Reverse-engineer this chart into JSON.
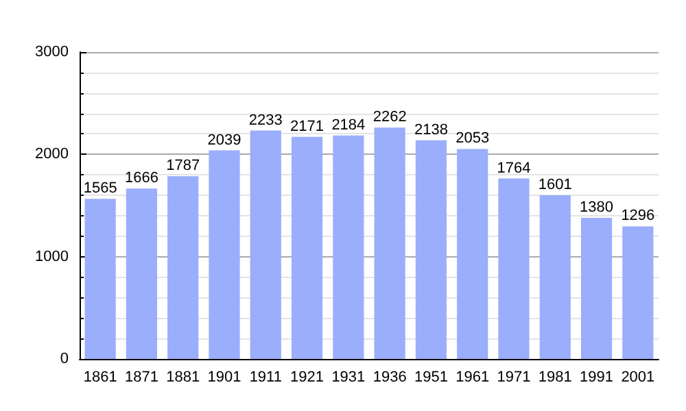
{
  "chart_data": {
    "type": "bar",
    "categories": [
      "1861",
      "1871",
      "1881",
      "1901",
      "1911",
      "1921",
      "1931",
      "1936",
      "1951",
      "1961",
      "1971",
      "1981",
      "1991",
      "2001"
    ],
    "values": [
      1565,
      1666,
      1787,
      2039,
      2233,
      2171,
      2184,
      2262,
      2138,
      2053,
      1764,
      1601,
      1380,
      1296
    ],
    "color": "#9aaefc",
    "ylim": [
      0,
      3000
    ],
    "yticks": [
      0,
      1000,
      2000,
      3000
    ],
    "grid": "y",
    "data_labels": true
  }
}
